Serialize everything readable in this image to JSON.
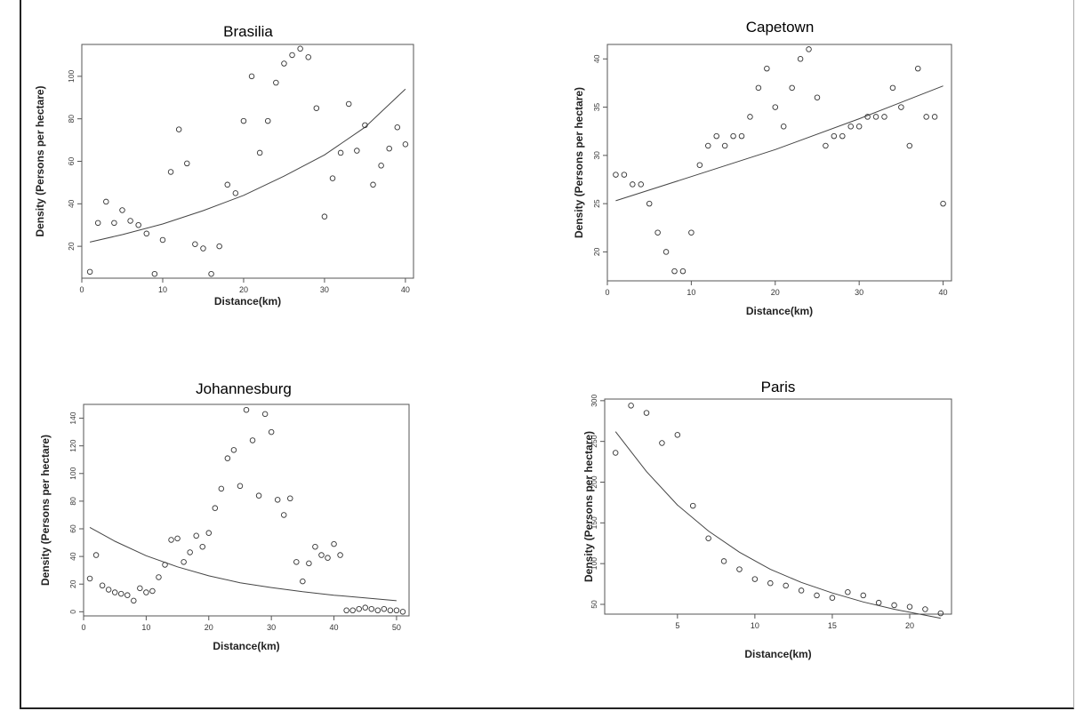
{
  "chart_data": [
    {
      "type": "scatter",
      "title": "Brasilia",
      "xlabel": "Distance(km)",
      "ylabel": "Density (Persons per hectare)",
      "xlim": [
        0,
        41
      ],
      "ylim": [
        5,
        115
      ],
      "xticks": [
        0,
        10,
        20,
        30,
        40
      ],
      "yticks": [
        20,
        40,
        60,
        80,
        100
      ],
      "points": [
        [
          1,
          8
        ],
        [
          2,
          31
        ],
        [
          3,
          41
        ],
        [
          4,
          31
        ],
        [
          5,
          37
        ],
        [
          6,
          32
        ],
        [
          7,
          30
        ],
        [
          8,
          26
        ],
        [
          9,
          7
        ],
        [
          10,
          23
        ],
        [
          11,
          55
        ],
        [
          12,
          75
        ],
        [
          13,
          59
        ],
        [
          14,
          21
        ],
        [
          15,
          19
        ],
        [
          16,
          7
        ],
        [
          17,
          20
        ],
        [
          18,
          49
        ],
        [
          19,
          45
        ],
        [
          20,
          79
        ],
        [
          21,
          100
        ],
        [
          22,
          64
        ],
        [
          23,
          79
        ],
        [
          24,
          97
        ],
        [
          25,
          106
        ],
        [
          26,
          110
        ],
        [
          27,
          113
        ],
        [
          28,
          109
        ],
        [
          29,
          85
        ],
        [
          30,
          34
        ],
        [
          31,
          52
        ],
        [
          32,
          64
        ],
        [
          33,
          87
        ],
        [
          34,
          65
        ],
        [
          35,
          77
        ],
        [
          36,
          49
        ],
        [
          37,
          58
        ],
        [
          38,
          66
        ],
        [
          39,
          76
        ],
        [
          40,
          68
        ]
      ],
      "fit": [
        [
          1,
          22
        ],
        [
          5,
          25.5
        ],
        [
          10,
          30.5
        ],
        [
          15,
          36.8
        ],
        [
          20,
          44
        ],
        [
          25,
          53
        ],
        [
          30,
          63
        ],
        [
          35,
          76
        ],
        [
          40,
          94
        ]
      ]
    },
    {
      "type": "scatter",
      "title": "Capetown",
      "xlabel": "Distance(km)",
      "ylabel": "Density (Persons per hectare)",
      "xlim": [
        0,
        41
      ],
      "ylim": [
        17,
        41.5
      ],
      "xticks": [
        0,
        10,
        20,
        30,
        40
      ],
      "yticks": [
        20,
        25,
        30,
        35,
        40
      ],
      "points": [
        [
          1,
          28
        ],
        [
          2,
          28
        ],
        [
          3,
          27
        ],
        [
          4,
          27
        ],
        [
          5,
          25
        ],
        [
          6,
          22
        ],
        [
          7,
          20
        ],
        [
          8,
          18
        ],
        [
          9,
          18
        ],
        [
          10,
          22
        ],
        [
          11,
          29
        ],
        [
          12,
          31
        ],
        [
          13,
          32
        ],
        [
          14,
          31
        ],
        [
          15,
          32
        ],
        [
          16,
          32
        ],
        [
          17,
          34
        ],
        [
          18,
          37
        ],
        [
          19,
          39
        ],
        [
          20,
          35
        ],
        [
          21,
          33
        ],
        [
          22,
          37
        ],
        [
          23,
          40
        ],
        [
          24,
          41
        ],
        [
          25,
          36
        ],
        [
          26,
          31
        ],
        [
          27,
          32
        ],
        [
          28,
          32
        ],
        [
          29,
          33
        ],
        [
          30,
          33
        ],
        [
          31,
          34
        ],
        [
          32,
          34
        ],
        [
          33,
          34
        ],
        [
          34,
          37
        ],
        [
          35,
          35
        ],
        [
          36,
          31
        ],
        [
          37,
          39
        ],
        [
          38,
          34
        ],
        [
          39,
          34
        ],
        [
          40,
          25
        ]
      ],
      "fit": [
        [
          1,
          25.3
        ],
        [
          10,
          27.8
        ],
        [
          20,
          30.6
        ],
        [
          30,
          33.8
        ],
        [
          40,
          37.2
        ]
      ]
    },
    {
      "type": "scatter",
      "title": "Johannesburg",
      "xlabel": "Distance(km)",
      "ylabel": "Density (Persons per hectare)",
      "xlim": [
        0,
        52
      ],
      "ylim": [
        -3,
        150
      ],
      "xticks": [
        0,
        10,
        20,
        30,
        40,
        50
      ],
      "yticks": [
        0,
        20,
        40,
        60,
        80,
        100,
        120,
        140
      ],
      "points": [
        [
          1,
          24
        ],
        [
          2,
          41
        ],
        [
          3,
          19
        ],
        [
          4,
          16
        ],
        [
          5,
          14
        ],
        [
          6,
          13
        ],
        [
          7,
          12
        ],
        [
          8,
          8
        ],
        [
          9,
          17
        ],
        [
          10,
          14
        ],
        [
          11,
          15
        ],
        [
          12,
          25
        ],
        [
          13,
          34
        ],
        [
          14,
          52
        ],
        [
          15,
          53
        ],
        [
          16,
          36
        ],
        [
          17,
          43
        ],
        [
          18,
          55
        ],
        [
          19,
          47
        ],
        [
          20,
          57
        ],
        [
          21,
          75
        ],
        [
          22,
          89
        ],
        [
          23,
          111
        ],
        [
          24,
          117
        ],
        [
          25,
          91
        ],
        [
          26,
          146
        ],
        [
          27,
          124
        ],
        [
          28,
          84
        ],
        [
          29,
          143
        ],
        [
          30,
          130
        ],
        [
          31,
          81
        ],
        [
          32,
          70
        ],
        [
          33,
          82
        ],
        [
          34,
          36
        ],
        [
          35,
          22
        ],
        [
          36,
          35
        ],
        [
          37,
          47
        ],
        [
          38,
          41
        ],
        [
          39,
          39
        ],
        [
          40,
          49
        ],
        [
          41,
          41
        ],
        [
          42,
          1
        ],
        [
          43,
          1
        ],
        [
          44,
          2
        ],
        [
          45,
          3
        ],
        [
          46,
          2
        ],
        [
          47,
          1
        ],
        [
          48,
          2
        ],
        [
          49,
          1
        ],
        [
          50,
          1
        ],
        [
          51,
          0
        ]
      ],
      "fit": [
        [
          1,
          61
        ],
        [
          5,
          51
        ],
        [
          10,
          40.5
        ],
        [
          15,
          32.5
        ],
        [
          20,
          26
        ],
        [
          25,
          21
        ],
        [
          30,
          17.5
        ],
        [
          35,
          14.5
        ],
        [
          40,
          12
        ],
        [
          45,
          10
        ],
        [
          50,
          8
        ]
      ]
    },
    {
      "type": "scatter",
      "title": "Paris",
      "xlabel": "Distance(km)",
      "ylabel": "Density (Persons per hectare)",
      "xlim": [
        0.3,
        22.7
      ],
      "ylim": [
        38,
        302
      ],
      "xticks": [
        5,
        10,
        15,
        20
      ],
      "yticks": [
        50,
        100,
        150,
        200,
        250,
        300
      ],
      "points": [
        [
          1,
          236
        ],
        [
          2,
          294
        ],
        [
          3,
          285
        ],
        [
          4,
          248
        ],
        [
          5,
          258
        ],
        [
          6,
          171
        ],
        [
          7,
          131
        ],
        [
          8,
          103
        ],
        [
          9,
          93
        ],
        [
          10,
          81
        ],
        [
          11,
          76
        ],
        [
          12,
          73
        ],
        [
          13,
          67
        ],
        [
          14,
          61
        ],
        [
          15,
          58
        ],
        [
          16,
          65
        ],
        [
          17,
          61
        ],
        [
          18,
          52
        ],
        [
          19,
          49
        ],
        [
          20,
          47
        ],
        [
          21,
          44
        ],
        [
          22,
          39
        ]
      ],
      "fit": [
        [
          1,
          262
        ],
        [
          3,
          213
        ],
        [
          5,
          172
        ],
        [
          7,
          140
        ],
        [
          9,
          114
        ],
        [
          11,
          93
        ],
        [
          13,
          77
        ],
        [
          15,
          64
        ],
        [
          17,
          53
        ],
        [
          19,
          44
        ],
        [
          22,
          33
        ]
      ]
    }
  ]
}
